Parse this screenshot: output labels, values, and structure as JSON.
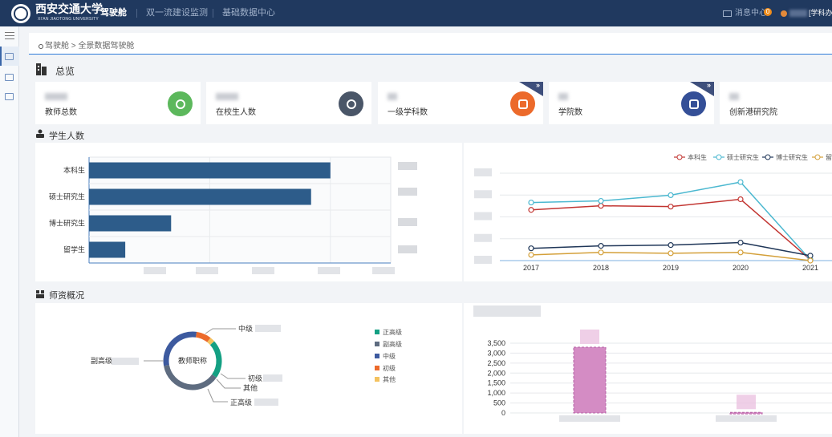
{
  "header": {
    "logo_text": "西安交通大学",
    "logo_subtitle": "XI'AN JIAOTONG UNIVERSITY",
    "nav": [
      {
        "label": "驾驶舱",
        "active": true
      },
      {
        "label": "双一流建设监测",
        "active": false
      },
      {
        "label": "基础数据中心",
        "active": false
      }
    ],
    "message_label": "消息中心",
    "message_count": "0",
    "user_role": "[学科办"
  },
  "breadcrumb": {
    "home": "驾驶舱",
    "current": "> 全景数据驾驶舱"
  },
  "overview": {
    "title": "总览",
    "cards": [
      {
        "label": "教师总数",
        "icon": "teacher-icon",
        "color": "#5cb85c",
        "ribbon": false
      },
      {
        "label": "在校生人数",
        "icon": "student-icon",
        "color": "#4a5668",
        "ribbon": false
      },
      {
        "label": "一级学科数",
        "icon": "subject-icon",
        "color": "#ec6a2b",
        "ribbon": true
      },
      {
        "label": "学院数",
        "icon": "college-icon",
        "color": "#344f97",
        "ribbon": true
      },
      {
        "label": "创新港研究院",
        "icon": "institute-icon",
        "color": "#ffffff",
        "ribbon": false
      }
    ],
    "ribbon_glyph": "»"
  },
  "students": {
    "title": "学生人数",
    "bar_chart": {
      "type": "bar",
      "categories": [
        "本科生",
        "硕士研究生",
        "博士研究生",
        "留学生"
      ],
      "values": [
        100,
        92,
        34,
        15
      ],
      "color": "#2d5c8a"
    },
    "line_chart": {
      "type": "line",
      "x": [
        "2017",
        "2018",
        "2019",
        "2020",
        "2021"
      ],
      "series": [
        {
          "name": "本科生",
          "color": "#c23531",
          "values": [
            62,
            67,
            66,
            75,
            1
          ]
        },
        {
          "name": "硕士研究生",
          "color": "#4bb8d0",
          "values": [
            71,
            73,
            80,
            96,
            1
          ]
        },
        {
          "name": "博士研究生",
          "color": "#1f3658",
          "values": [
            15,
            18,
            19,
            22,
            6
          ]
        },
        {
          "name": "留学生",
          "color": "#d4a03a",
          "values": [
            7,
            10,
            9,
            10,
            0
          ]
        }
      ],
      "ylim": [
        0,
        100
      ]
    }
  },
  "faculty": {
    "title": "师资概况",
    "donut": {
      "center_label": "教师职称",
      "labels": {
        "mid": "中级",
        "associate": "副高级",
        "junior": "初级",
        "other": "其他",
        "senior": "正高级"
      }
    },
    "legend": [
      {
        "name": "正高级",
        "color": "#14a083"
      },
      {
        "name": "副高级",
        "color": "#5e6c80"
      },
      {
        "name": "中级",
        "color": "#3d5a9f"
      },
      {
        "name": "初级",
        "color": "#ec6a2b"
      },
      {
        "name": "其他",
        "color": "#f4c25f"
      }
    ]
  },
  "chart_data": {
    "type": "bar",
    "categories": [
      "",
      ""
    ],
    "values": [
      3300,
      30
    ],
    "ylim": [
      0,
      3500
    ],
    "y_ticks": [
      "3,500",
      "3,000",
      "2,500",
      "2,000",
      "1,500",
      "1,000",
      "500",
      "0"
    ],
    "color": "#d48cc4"
  }
}
